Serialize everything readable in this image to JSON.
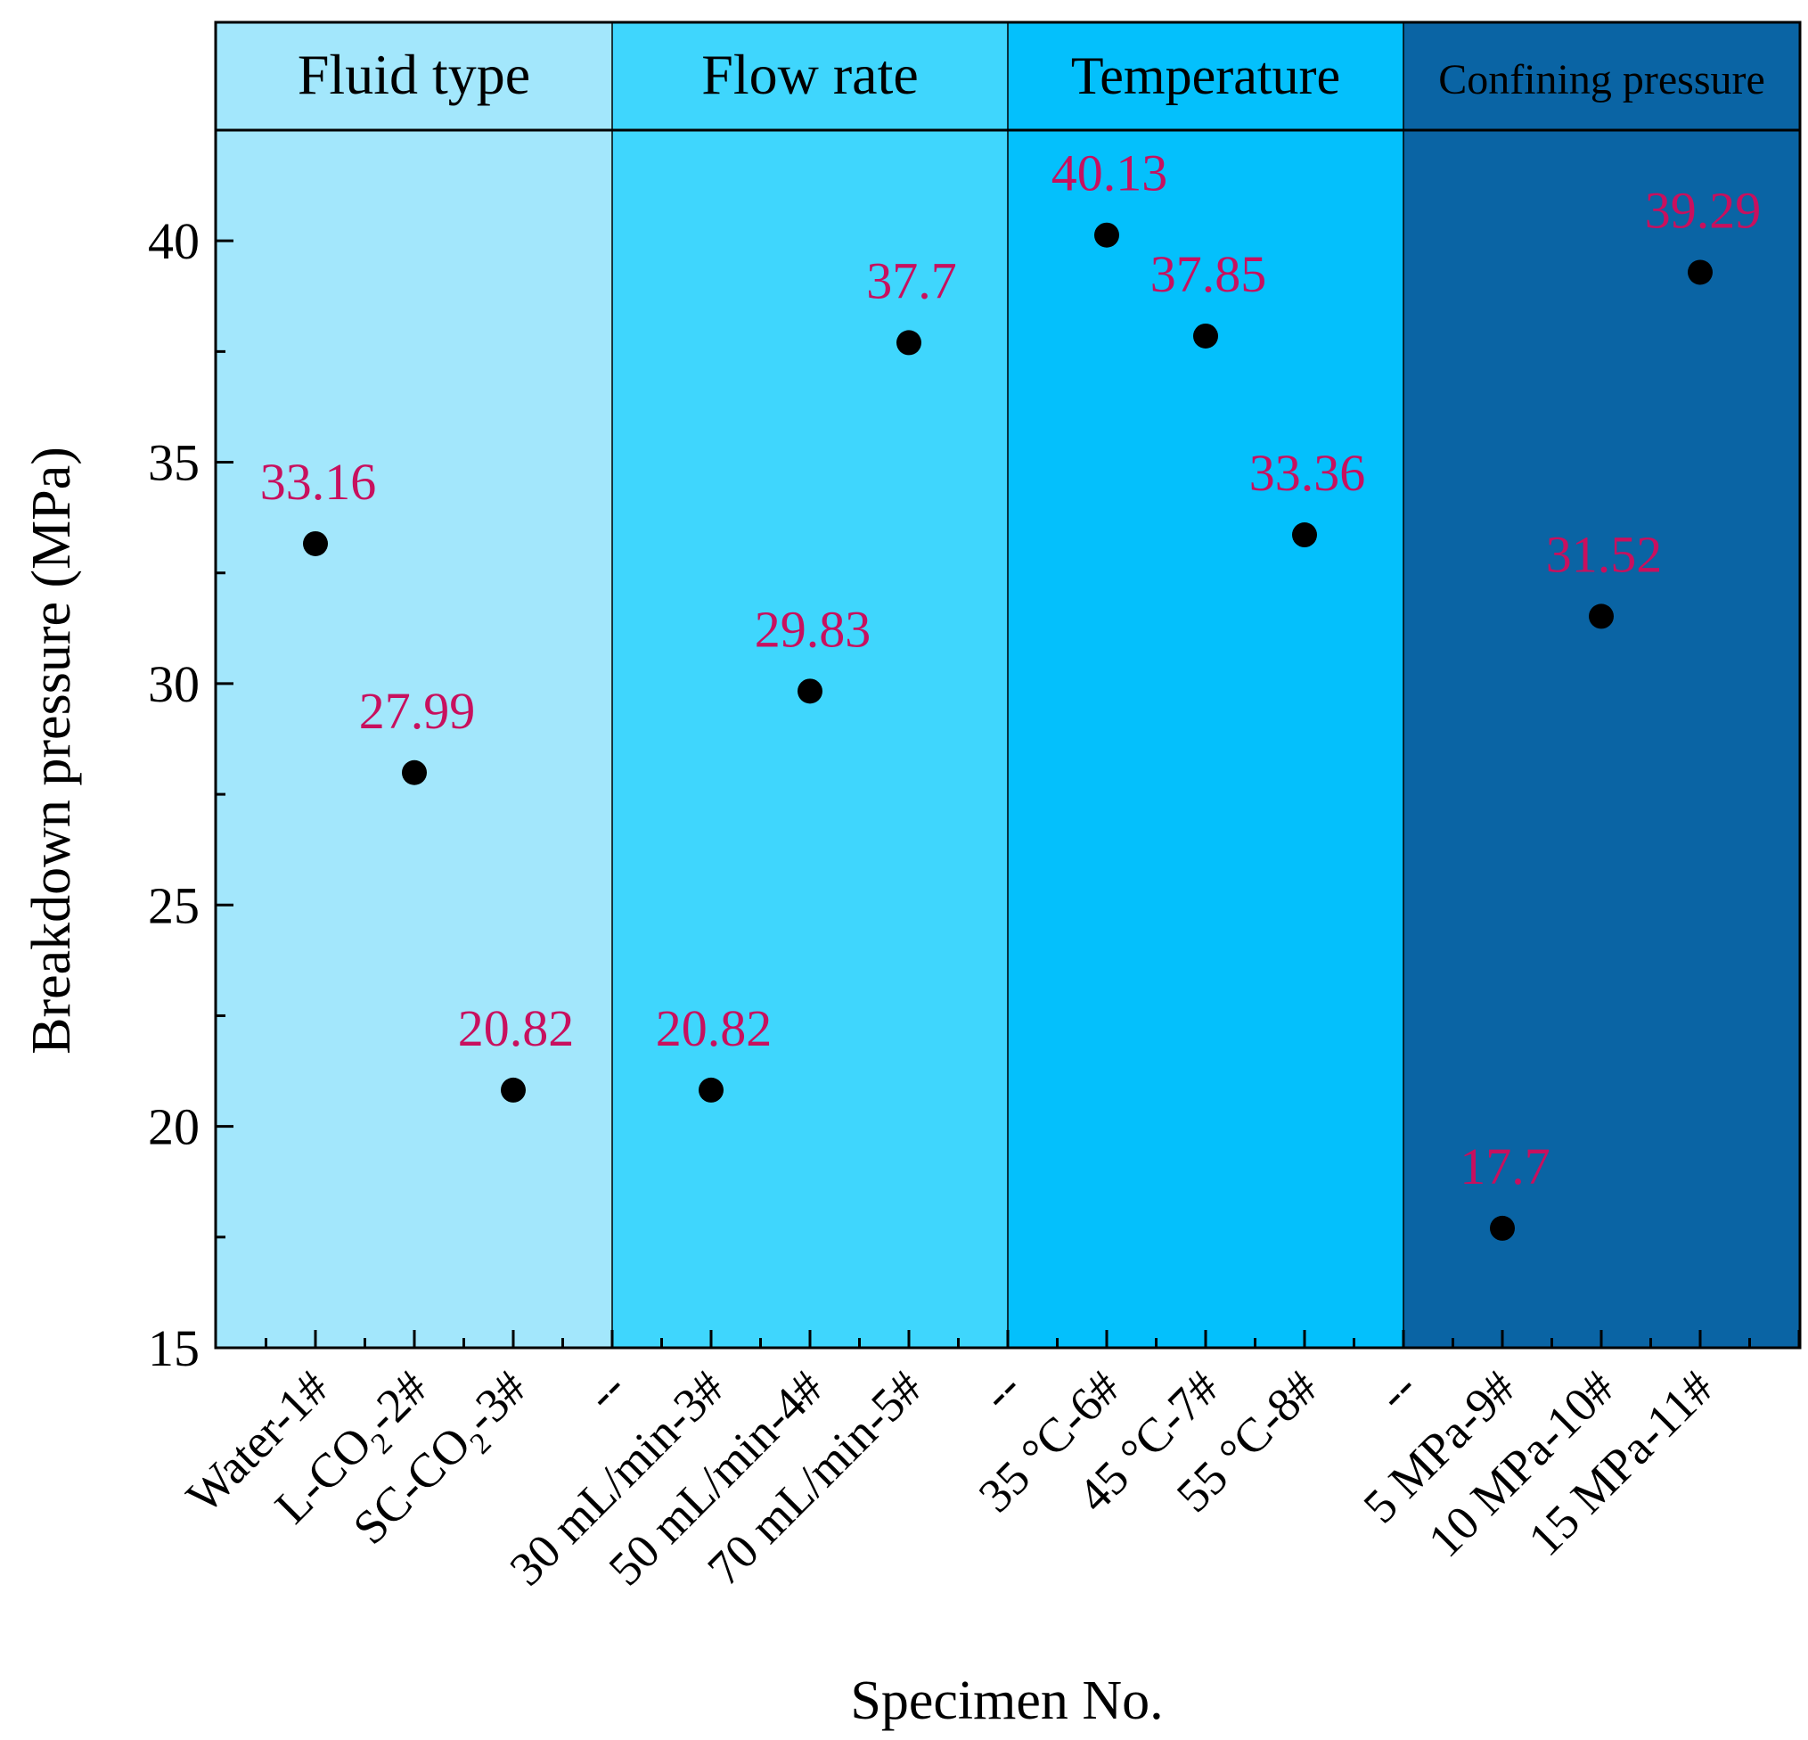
{
  "chart_data": {
    "type": "scatter",
    "title": "",
    "xlabel": "Specimen No.",
    "ylabel": "Breakdown pressure (MPa)",
    "ylim": [
      15,
      42.5
    ],
    "yticks": [
      15,
      20,
      25,
      30,
      35,
      40
    ],
    "ytick_labels": [
      "15",
      "20",
      "25",
      "30",
      "35",
      "40"
    ],
    "grid": false,
    "legend": "none",
    "marker_color": "#000000",
    "label_color": "#c8105e",
    "groups": [
      {
        "title": "Fluid type",
        "color": "#a3e7fc",
        "categories": [
          {
            "label": "Water-1#",
            "main": "Water-1#",
            "sub": "",
            "tail": ""
          },
          {
            "label": "L-CO2-2#",
            "main": "L-CO",
            "sub": "2",
            "tail": "-2#"
          },
          {
            "label": "SC-CO2-3#",
            "main": "SC-CO",
            "sub": "2",
            "tail": "-3#"
          }
        ],
        "values": [
          33.16,
          27.99,
          20.82
        ],
        "value_labels": [
          "33.16",
          "27.99",
          "20.82"
        ]
      },
      {
        "title": "Flow rate",
        "color": "#3fd6fd",
        "categories": [
          {
            "label": "--",
            "main": "--",
            "sub": "",
            "tail": ""
          },
          {
            "label": "30 mL/min-3#",
            "main": "30 mL/min-3#",
            "sub": "",
            "tail": ""
          },
          {
            "label": "50 mL/min-4#",
            "main": "50 mL/min-4#",
            "sub": "",
            "tail": ""
          },
          {
            "label": "70 mL/min-5#",
            "main": "70 mL/min-5#",
            "sub": "",
            "tail": ""
          }
        ],
        "values": [
          null,
          20.82,
          29.83,
          37.7
        ],
        "value_labels": [
          null,
          "20.82",
          "29.83",
          "37.7"
        ]
      },
      {
        "title": "Temperature",
        "color": "#04c0fc",
        "categories": [
          {
            "label": "--",
            "main": "--",
            "sub": "",
            "tail": ""
          },
          {
            "label": "35 °C-6#",
            "main": "35 °C-6#",
            "sub": "",
            "tail": ""
          },
          {
            "label": "45 °C-7#",
            "main": "45 °C-7#",
            "sub": "",
            "tail": ""
          },
          {
            "label": "55 °C-8#",
            "main": "55 °C-8#",
            "sub": "",
            "tail": ""
          }
        ],
        "values": [
          null,
          40.13,
          37.85,
          33.36
        ],
        "value_labels": [
          null,
          "40.13",
          "37.85",
          "33.36"
        ]
      },
      {
        "title": "Confining pressure",
        "color": "#0a64a4",
        "categories": [
          {
            "label": "--",
            "main": "--",
            "sub": "",
            "tail": ""
          },
          {
            "label": "5 MPa-9#",
            "main": "5 MPa-9#",
            "sub": "",
            "tail": ""
          },
          {
            "label": "10 MPa-10#",
            "main": "10 MPa-10#",
            "sub": "",
            "tail": ""
          },
          {
            "label": "15 MPa-11#",
            "main": "15 MPa-11#",
            "sub": "",
            "tail": ""
          }
        ],
        "values": [
          null,
          17.7,
          31.52,
          39.29
        ],
        "value_labels": [
          null,
          "17.7",
          "31.52",
          "39.29"
        ]
      }
    ]
  }
}
